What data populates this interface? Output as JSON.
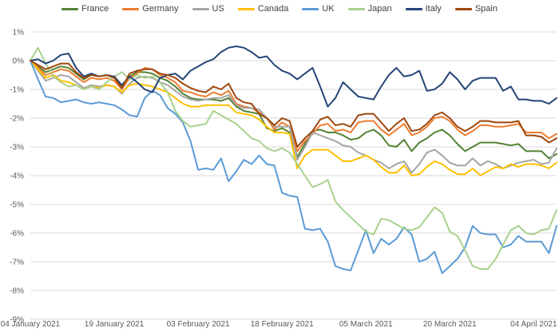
{
  "chart_data": {
    "type": "line",
    "title": "",
    "subtitle": "",
    "grid": true,
    "grid_color": "#d9d9d9",
    "text_color": "#595959",
    "legend_position": "top",
    "y_axis": {
      "unit": "%",
      "min": -9,
      "max": 1,
      "step": 1,
      "tick_labels": [
        "1%",
        "0%",
        "-1%",
        "-2%",
        "-3%",
        "-4%",
        "-5%",
        "-6%",
        "-7%",
        "-8%",
        "-9%"
      ]
    },
    "x_axis": {
      "num_points": 70,
      "tick_labels": [
        "04 January 2021",
        "19 January 2021",
        "03 February 2021",
        "18 February 2021",
        "05 March 2021",
        "20 March 2021",
        "04 April 2021"
      ],
      "tick_point_indices": [
        0,
        11,
        22,
        33,
        44,
        55,
        66
      ]
    },
    "series": [
      {
        "name": "France",
        "color": "#548235",
        "values": [
          0,
          -0.2,
          -0.4,
          -0.3,
          -0.2,
          -0.25,
          -0.45,
          -0.65,
          -0.5,
          -0.55,
          -0.5,
          -0.6,
          -0.9,
          -0.55,
          -0.4,
          -0.4,
          -0.45,
          -0.6,
          -0.7,
          -0.9,
          -1.15,
          -1.3,
          -1.35,
          -1.35,
          -1.35,
          -1.4,
          -1.3,
          -1.6,
          -1.75,
          -1.8,
          -1.85,
          -2.35,
          -2.45,
          -2.35,
          -2.5,
          -3.35,
          -2.9,
          -2.45,
          -2.4,
          -2.5,
          -2.5,
          -2.6,
          -2.75,
          -2.7,
          -2.5,
          -2.4,
          -2.6,
          -2.95,
          -3.0,
          -2.75,
          -3.15,
          -2.85,
          -2.7,
          -2.5,
          -2.4,
          -2.6,
          -2.9,
          -3.15,
          -3.0,
          -2.85,
          -2.85,
          -2.85,
          -2.9,
          -2.95,
          -2.9,
          -3.15,
          -3.15,
          -3.15,
          -3.4,
          -3.25
        ]
      },
      {
        "name": "Germany",
        "color": "#ED7D31",
        "values": [
          0,
          -0.25,
          -0.5,
          -0.4,
          -0.3,
          -0.35,
          -0.55,
          -0.75,
          -0.6,
          -0.65,
          -0.6,
          -0.7,
          -1.0,
          -0.6,
          -0.45,
          -0.25,
          -0.3,
          -0.5,
          -0.6,
          -0.75,
          -1.05,
          -1.1,
          -1.2,
          -1.25,
          -1.1,
          -1.2,
          -1.05,
          -1.5,
          -1.6,
          -1.65,
          -1.8,
          -2.0,
          -2.4,
          -2.15,
          -2.3,
          -3.15,
          -2.8,
          -2.55,
          -2.25,
          -2.2,
          -2.45,
          -2.4,
          -2.5,
          -2.15,
          -2.1,
          -2.1,
          -2.4,
          -2.6,
          -2.4,
          -2.2,
          -2.6,
          -2.5,
          -2.3,
          -2.0,
          -1.95,
          -2.1,
          -2.4,
          -2.6,
          -2.45,
          -2.25,
          -2.25,
          -2.3,
          -2.3,
          -2.25,
          -2.2,
          -2.5,
          -2.5,
          -2.5,
          -2.7,
          -2.55
        ]
      },
      {
        "name": "US",
        "color": "#A5A5A5",
        "values": [
          0,
          -0.35,
          -0.7,
          -0.6,
          -0.5,
          -0.55,
          -0.75,
          -0.95,
          -0.85,
          -0.9,
          -0.85,
          -0.9,
          -1.15,
          -0.8,
          -0.6,
          -0.55,
          -0.6,
          -0.75,
          -0.85,
          -1.05,
          -1.25,
          -1.35,
          -1.4,
          -1.35,
          -1.3,
          -1.3,
          -1.2,
          -1.55,
          -1.65,
          -1.65,
          -1.7,
          -2.0,
          -2.3,
          -2.3,
          -2.3,
          -3.45,
          -3.0,
          -2.5,
          -2.6,
          -2.7,
          -2.8,
          -2.95,
          -3.0,
          -3.2,
          -3.3,
          -3.45,
          -3.55,
          -3.75,
          -3.6,
          -3.5,
          -3.9,
          -3.6,
          -3.2,
          -3.1,
          -3.3,
          -3.55,
          -3.65,
          -3.65,
          -3.4,
          -3.65,
          -3.5,
          -3.6,
          -3.75,
          -3.65,
          -3.55,
          -3.5,
          -3.45,
          -3.6,
          -3.55,
          -3.05
        ]
      },
      {
        "name": "Canada",
        "color": "#FFC000",
        "values": [
          0,
          -0.3,
          -0.6,
          -0.5,
          -0.7,
          -0.75,
          -0.85,
          -1.0,
          -0.9,
          -0.95,
          -0.85,
          -0.9,
          -1.1,
          -0.85,
          -0.8,
          -0.85,
          -0.9,
          -1.0,
          -1.1,
          -1.3,
          -1.5,
          -1.6,
          -1.6,
          -1.55,
          -1.55,
          -1.55,
          -1.55,
          -1.8,
          -1.85,
          -1.9,
          -2.05,
          -2.3,
          -2.5,
          -2.5,
          -2.55,
          -3.75,
          -3.3,
          -3.1,
          -3.1,
          -3.1,
          -3.3,
          -3.5,
          -3.5,
          -3.4,
          -3.3,
          -3.45,
          -3.7,
          -3.9,
          -3.9,
          -3.65,
          -4.0,
          -3.95,
          -3.7,
          -3.5,
          -3.6,
          -3.8,
          -3.95,
          -3.95,
          -3.75,
          -4.0,
          -3.85,
          -3.7,
          -3.75,
          -3.6,
          -3.7,
          -3.6,
          -3.6,
          -3.65,
          -3.75,
          -3.55
        ]
      },
      {
        "name": "UK",
        "color": "#5B9BD5",
        "values": [
          0,
          -0.65,
          -1.25,
          -1.3,
          -1.45,
          -1.4,
          -1.35,
          -1.45,
          -1.5,
          -1.45,
          -1.5,
          -1.55,
          -1.7,
          -1.9,
          -1.95,
          -1.3,
          -1.05,
          -1.2,
          -1.65,
          -1.85,
          -2.15,
          -2.8,
          -3.8,
          -3.75,
          -3.8,
          -3.4,
          -4.2,
          -3.85,
          -3.45,
          -3.6,
          -3.3,
          -3.6,
          -3.65,
          -4.6,
          -4.7,
          -4.75,
          -5.85,
          -5.9,
          -5.85,
          -6.3,
          -7.15,
          -7.25,
          -7.3,
          -6.6,
          -5.9,
          -6.7,
          -6.2,
          -6.4,
          -6.2,
          -5.8,
          -6.05,
          -7.0,
          -6.9,
          -6.65,
          -7.4,
          -7.15,
          -6.9,
          -6.5,
          -5.75,
          -6.0,
          -6.05,
          -6.05,
          -6.5,
          -6.4,
          -6.1,
          -6.3,
          -6.3,
          -6.3,
          -6.7,
          -5.75
        ]
      },
      {
        "name": "Japan",
        "color": "#A9D18E",
        "values": [
          0,
          0.45,
          -0.1,
          -0.55,
          -0.75,
          -0.9,
          -0.85,
          -1.0,
          -0.9,
          -1.0,
          -0.75,
          -0.55,
          -0.4,
          -0.65,
          -0.5,
          -0.6,
          -0.55,
          -0.75,
          -1.1,
          -1.75,
          -2.1,
          -2.3,
          -2.25,
          -2.2,
          -1.75,
          -1.9,
          -2.05,
          -2.2,
          -2.45,
          -2.7,
          -2.8,
          -3.05,
          -3.15,
          -3.05,
          -3.2,
          -3.6,
          -4.0,
          -4.4,
          -4.3,
          -4.15,
          -4.9,
          -5.2,
          -5.45,
          -5.7,
          -5.95,
          -6.05,
          -5.5,
          -5.55,
          -5.7,
          -5.85,
          -5.9,
          -5.8,
          -5.45,
          -5.1,
          -5.3,
          -5.95,
          -6.1,
          -6.6,
          -7.15,
          -7.25,
          -7.25,
          -6.9,
          -6.4,
          -5.9,
          -5.75,
          -6.0,
          -6.05,
          -5.9,
          -5.85,
          -5.2
        ]
      },
      {
        "name": "Italy",
        "color": "#264478",
        "values": [
          0,
          0.05,
          -0.1,
          0.0,
          0.2,
          0.25,
          -0.25,
          -0.55,
          -0.45,
          -0.55,
          -0.5,
          -0.55,
          -0.85,
          -0.55,
          -0.75,
          -1.0,
          -1.1,
          -0.6,
          -0.5,
          -0.45,
          -0.65,
          -0.35,
          -0.2,
          -0.05,
          0.05,
          0.3,
          0.45,
          0.5,
          0.45,
          0.3,
          0.1,
          0.15,
          -0.15,
          -0.35,
          -0.45,
          -0.65,
          -0.45,
          -0.25,
          -0.9,
          -1.6,
          -1.3,
          -0.75,
          -1.0,
          -1.25,
          -1.3,
          -1.35,
          -0.9,
          -0.5,
          -0.25,
          -0.55,
          -0.5,
          -0.35,
          -1.05,
          -1.0,
          -0.8,
          -0.4,
          -0.65,
          -1.0,
          -0.7,
          -0.6,
          -0.6,
          -0.6,
          -1.05,
          -0.9,
          -1.35,
          -1.35,
          -1.4,
          -1.4,
          -1.5,
          -1.3
        ]
      },
      {
        "name": "Spain",
        "color": "#9E480E",
        "values": [
          0,
          -0.15,
          -0.3,
          -0.2,
          -0.1,
          -0.1,
          -0.4,
          -0.6,
          -0.5,
          -0.55,
          -0.5,
          -0.6,
          -0.95,
          -0.45,
          -0.35,
          -0.3,
          -0.3,
          -0.45,
          -0.5,
          -0.6,
          -0.8,
          -0.95,
          -1.05,
          -1.1,
          -0.9,
          -1.0,
          -0.8,
          -1.3,
          -1.45,
          -1.5,
          -1.85,
          -2.0,
          -2.25,
          -2.0,
          -2.1,
          -3.0,
          -2.7,
          -2.45,
          -2.05,
          -1.95,
          -2.25,
          -2.2,
          -2.3,
          -1.9,
          -1.85,
          -1.85,
          -2.15,
          -2.45,
          -2.2,
          -2.0,
          -2.45,
          -2.4,
          -2.2,
          -1.9,
          -1.8,
          -2.0,
          -2.3,
          -2.45,
          -2.3,
          -2.1,
          -2.1,
          -2.15,
          -2.15,
          -2.15,
          -2.1,
          -2.6,
          -2.6,
          -2.65,
          -2.85,
          -2.7
        ]
      }
    ]
  }
}
